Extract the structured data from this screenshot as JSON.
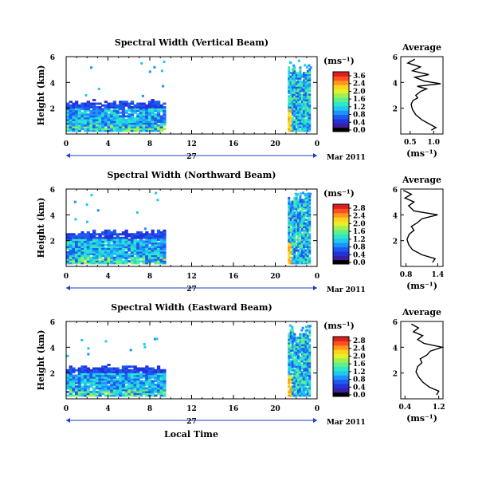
{
  "figure": {
    "xlabel": "Local Time",
    "colors": {
      "colormap": [
        "#000000",
        "#3c1ea0",
        "#2233dd",
        "#1e5af0",
        "#1e90ff",
        "#1ec8f0",
        "#2ee6c8",
        "#5ef08c",
        "#a0f050",
        "#e6f028",
        "#ffd21e",
        "#ff961e",
        "#ff501e",
        "#dc1e1e"
      ],
      "axis": "#000000",
      "time_axis_accent": "#1e3cc8"
    }
  },
  "chart_data": [
    {
      "type": "heatmap",
      "title": "Spectral Width (Vertical Beam)",
      "ylabel": "Height (km)",
      "y_ticks": [
        "6",
        "4",
        "2"
      ],
      "ylim": [
        0,
        6
      ],
      "x_ticks": [
        "0",
        "4",
        "8",
        "12",
        "16",
        "20",
        "0"
      ],
      "xlim": [
        0,
        24
      ],
      "day_label": "27",
      "date_label": "Mar 2011",
      "colorbar": {
        "unit": "(ms⁻¹)",
        "ticks": [
          "3.6",
          "2.4",
          "2.0",
          "1.6",
          "1.2",
          "0.8",
          "0.4",
          "0.0"
        ],
        "range": [
          0,
          3.6
        ]
      },
      "data_blocks": [
        {
          "t_start": 0,
          "t_end": 9.3,
          "h_bottom": 0.2,
          "h_top": 2.6
        },
        {
          "t_start": 21.2,
          "t_end": 23.3,
          "h_bottom": 0.2,
          "h_top": 5.2
        }
      ],
      "profile": {
        "title": "Average",
        "unit": "(ms⁻¹)",
        "x_ticks": [
          "0.5",
          "1.0"
        ],
        "xlim": [
          0.3,
          1.2
        ],
        "y_ticks": [
          "6",
          "4",
          "2"
        ],
        "ylim": [
          0,
          6
        ],
        "points": [
          [
            0.95,
            0.3
          ],
          [
            1.05,
            0.5
          ],
          [
            0.9,
            0.8
          ],
          [
            0.75,
            1.1
          ],
          [
            0.62,
            1.5
          ],
          [
            0.55,
            1.9
          ],
          [
            0.52,
            2.3
          ],
          [
            0.56,
            2.6
          ],
          [
            0.66,
            2.8
          ],
          [
            0.62,
            3.0
          ],
          [
            0.72,
            3.3
          ],
          [
            0.85,
            3.5
          ],
          [
            0.65,
            3.7
          ],
          [
            1.15,
            3.9
          ],
          [
            0.8,
            4.1
          ],
          [
            0.6,
            4.4
          ],
          [
            0.9,
            4.6
          ],
          [
            0.55,
            4.9
          ],
          [
            0.72,
            5.2
          ],
          [
            0.45,
            5.5
          ],
          [
            0.6,
            5.8
          ]
        ]
      }
    },
    {
      "type": "heatmap",
      "title": "Spectral Width (Northward Beam)",
      "ylabel": "Height (km)",
      "y_ticks": [
        "6",
        "4",
        "2"
      ],
      "ylim": [
        0,
        6
      ],
      "x_ticks": [
        "0",
        "4",
        "8",
        "12",
        "16",
        "20",
        "0"
      ],
      "xlim": [
        0,
        24
      ],
      "day_label": "27",
      "date_label": "Mar 2011",
      "colorbar": {
        "unit": "(ms⁻¹)",
        "ticks": [
          "2.8",
          "2.4",
          "2.0",
          "1.6",
          "1.2",
          "0.8",
          "0.4",
          "0.0"
        ],
        "range": [
          0,
          2.8
        ]
      },
      "data_blocks": [
        {
          "t_start": 0,
          "t_end": 9.3,
          "h_bottom": 0.2,
          "h_top": 2.8
        },
        {
          "t_start": 21.2,
          "t_end": 23.3,
          "h_bottom": 0.2,
          "h_top": 5.6
        }
      ],
      "profile": {
        "title": "Average",
        "unit": "(ms⁻¹)",
        "x_ticks": [
          "0.8",
          "1.4"
        ],
        "xlim": [
          0.7,
          1.5
        ],
        "y_ticks": [
          "6",
          "4",
          "2"
        ],
        "ylim": [
          0,
          6
        ],
        "points": [
          [
            1.3,
            0.3
          ],
          [
            1.35,
            0.6
          ],
          [
            1.1,
            0.9
          ],
          [
            0.92,
            1.3
          ],
          [
            0.85,
            1.7
          ],
          [
            0.82,
            2.1
          ],
          [
            0.86,
            2.5
          ],
          [
            0.95,
            2.8
          ],
          [
            0.9,
            3.1
          ],
          [
            1.02,
            3.4
          ],
          [
            1.1,
            3.7
          ],
          [
            1.4,
            4.0
          ],
          [
            0.95,
            4.3
          ],
          [
            0.85,
            4.7
          ],
          [
            0.95,
            5.0
          ],
          [
            0.78,
            5.3
          ],
          [
            0.9,
            5.6
          ],
          [
            0.75,
            5.9
          ]
        ]
      }
    },
    {
      "type": "heatmap",
      "title": "Spectral Width (Eastward Beam)",
      "ylabel": "Height (km)",
      "y_ticks": [
        "6",
        "4",
        "2"
      ],
      "ylim": [
        0,
        6
      ],
      "x_ticks": [
        "0",
        "4",
        "8",
        "12",
        "16",
        "20",
        "0"
      ],
      "xlim": [
        0,
        24
      ],
      "day_label": "27",
      "date_label": "Mar 2011",
      "colorbar": {
        "unit": "(ms⁻¹)",
        "ticks": [
          "2.8",
          "2.4",
          "2.0",
          "1.6",
          "1.2",
          "0.8",
          "0.4",
          "0.0"
        ],
        "range": [
          0,
          2.8
        ]
      },
      "data_blocks": [
        {
          "t_start": 0,
          "t_end": 9.3,
          "h_bottom": 0.2,
          "h_top": 2.6
        },
        {
          "t_start": 21.2,
          "t_end": 23.3,
          "h_bottom": 0.2,
          "h_top": 5.4
        }
      ],
      "profile": {
        "title": "Average",
        "unit": "(ms⁻¹)",
        "x_ticks": [
          "0.4",
          "1.2"
        ],
        "xlim": [
          0.3,
          1.3
        ],
        "y_ticks": [
          "6",
          "4",
          "2"
        ],
        "ylim": [
          0,
          6
        ],
        "points": [
          [
            1.15,
            0.3
          ],
          [
            1.2,
            0.6
          ],
          [
            0.98,
            0.9
          ],
          [
            0.82,
            1.3
          ],
          [
            0.72,
            1.7
          ],
          [
            0.66,
            2.1
          ],
          [
            0.7,
            2.5
          ],
          [
            0.8,
            2.8
          ],
          [
            0.76,
            3.1
          ],
          [
            0.92,
            3.4
          ],
          [
            1.0,
            3.7
          ],
          [
            1.28,
            4.0
          ],
          [
            0.85,
            4.3
          ],
          [
            0.7,
            4.6
          ],
          [
            0.82,
            4.9
          ],
          [
            0.6,
            5.2
          ],
          [
            0.72,
            5.5
          ],
          [
            0.55,
            5.8
          ]
        ]
      }
    }
  ]
}
